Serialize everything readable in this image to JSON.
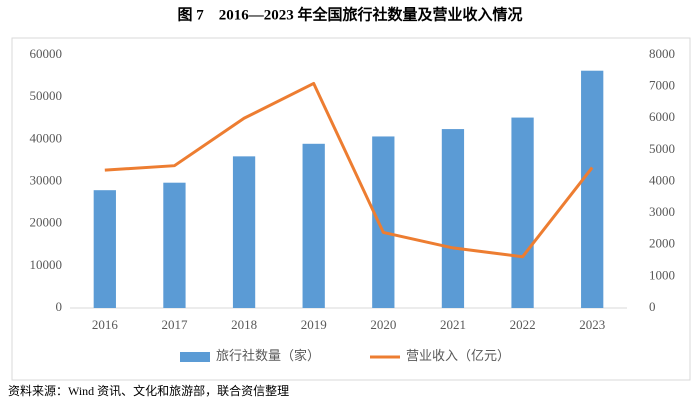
{
  "chart_data": {
    "type": "bar_line",
    "title": "图 7　2016—2023 年全国旅行社数量及营业收入情况",
    "source": "资料来源：Wind 资讯、文化和旅游部，联合资信整理",
    "categories": [
      "2016",
      "2017",
      "2018",
      "2019",
      "2020",
      "2021",
      "2022",
      "2023"
    ],
    "series": [
      {
        "name": "旅行社数量（家）",
        "color": "#5b9bd5",
        "type": "bar",
        "values": [
          27939,
          29717,
          35963,
          38943,
          40682,
          42432,
          45162,
          56275
        ]
      },
      {
        "name": "营业收入（亿元）",
        "color": "#ed7d31",
        "type": "line",
        "axis": "y2",
        "values": [
          4360,
          4500,
          6000,
          7100,
          2390,
          1900,
          1620,
          4440
        ]
      }
    ],
    "ylim": [
      0,
      60000
    ],
    "yticks": [
      0,
      10000,
      20000,
      30000,
      40000,
      50000,
      60000
    ],
    "y2lim": [
      0,
      8000
    ],
    "y2ticks": [
      0,
      1000,
      2000,
      3000,
      4000,
      5000,
      6000,
      7000,
      8000
    ],
    "legend": "bottom"
  }
}
